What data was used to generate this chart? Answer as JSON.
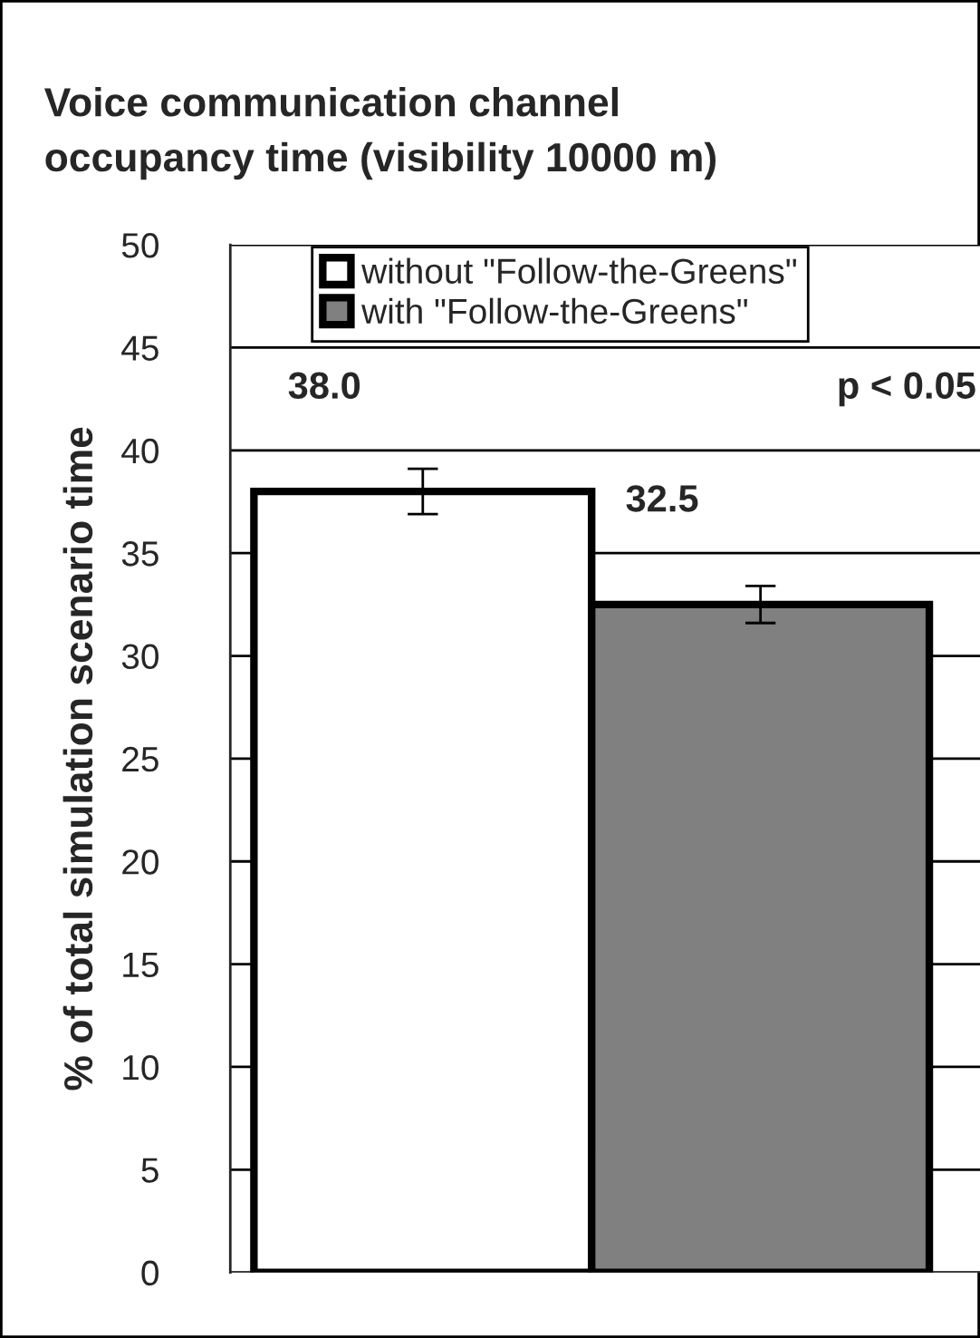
{
  "chart_data": {
    "type": "bar",
    "title": "Voice communication channel\noccupancy time (visibility 10000 m)",
    "ylabel": "% of total simulation scenario time",
    "categories": [
      null
    ],
    "series": [
      {
        "name": "without \"Follow-the-Greens\"",
        "color": "#ffffff",
        "values": [
          38.0
        ],
        "errors": [
          1.1
        ],
        "value_labels": [
          "38.0"
        ]
      },
      {
        "name": "with \"Follow-the-Greens\"",
        "color": "#808080",
        "values": [
          32.5
        ],
        "errors": [
          0.9
        ],
        "value_labels": [
          "32.5"
        ]
      }
    ],
    "annotations": [
      "p < 0.05"
    ],
    "ylim": [
      0,
      50
    ],
    "yticks": [
      0,
      5,
      10,
      15,
      20,
      25,
      30,
      35,
      40,
      45,
      50
    ],
    "grid": "y",
    "legend": "top",
    "tick_labels": "y"
  }
}
